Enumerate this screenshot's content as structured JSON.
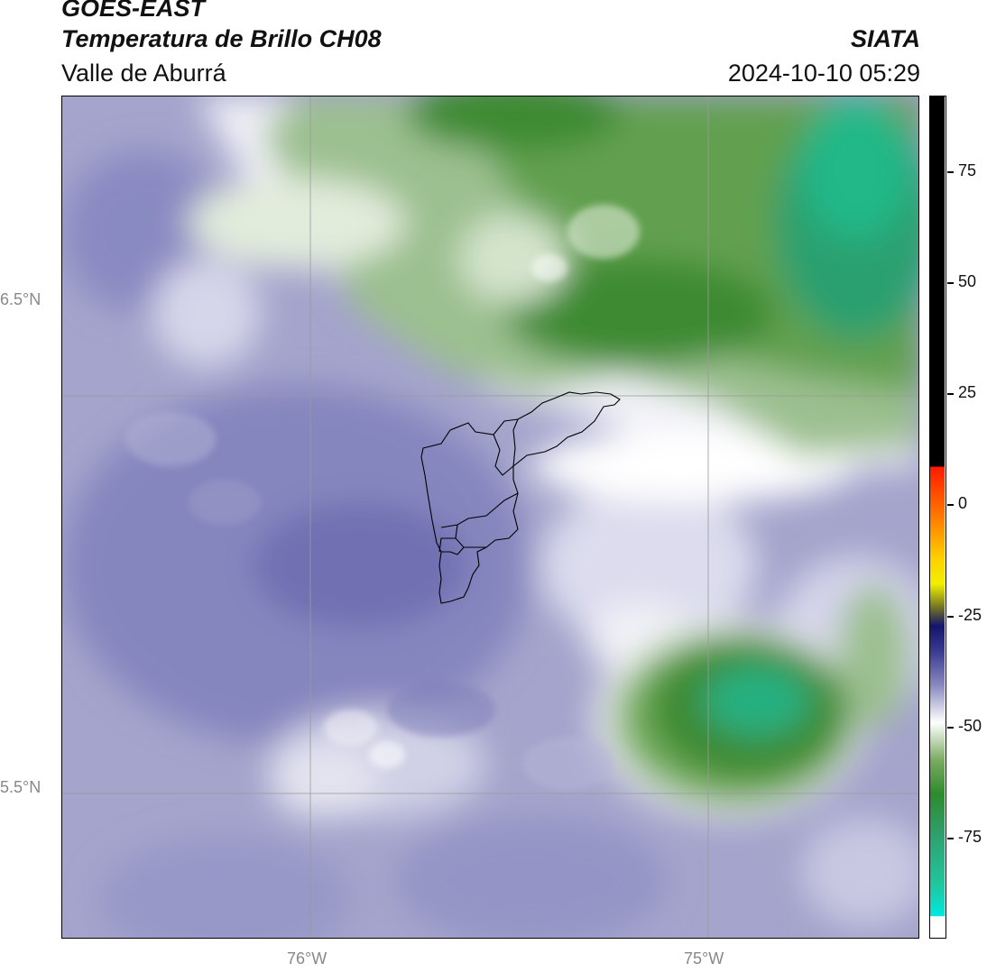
{
  "header": {
    "satellite": "GOES-EAST",
    "product": "Temperatura de Brillo CH08",
    "region": "Valle de Aburrá",
    "agency": "SIATA",
    "datetime": "2024-10-10 05:29"
  },
  "map": {
    "lat_labels": [
      {
        "label": "6.5°N",
        "value": 6.5
      },
      {
        "label": "5.5°N",
        "value": 5.5
      }
    ],
    "lon_labels": [
      {
        "label": "76°W",
        "value": -76.0
      },
      {
        "label": "75°W",
        "value": -75.0
      }
    ],
    "extent": {
      "lon_min": -76.62,
      "lon_max": -74.47,
      "lat_min": 5.2,
      "lat_max": 7.25
    }
  },
  "colorbar": {
    "ticks": [
      "75",
      "50",
      "25",
      "0",
      "-25",
      "-50",
      "-75"
    ],
    "tick_values": [
      75,
      50,
      25,
      0,
      -25,
      -50,
      -75
    ],
    "range": [
      -92,
      91
    ],
    "colors": {
      "warm": "#000000",
      "red": "#ff1a00",
      "orange": "#ff8c00",
      "yellow": "#f0f000",
      "navy": "#1a1a7a",
      "lavender": "#8888c0",
      "white": "#ffffff",
      "green": "#2e8b2e",
      "teal": "#20c090",
      "cyan": "#00e8e0"
    }
  }
}
